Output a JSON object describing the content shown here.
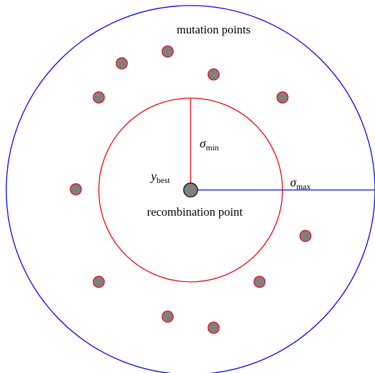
{
  "labels": {
    "mutation": "mutation points",
    "sigma_min": {
      "symbol": "σ",
      "subscript": "min"
    },
    "sigma_max": {
      "symbol": "σ",
      "subscript": "max"
    },
    "y_best": {
      "symbol": "y",
      "subscript": "best"
    },
    "recombination": "recombination point"
  }
}
